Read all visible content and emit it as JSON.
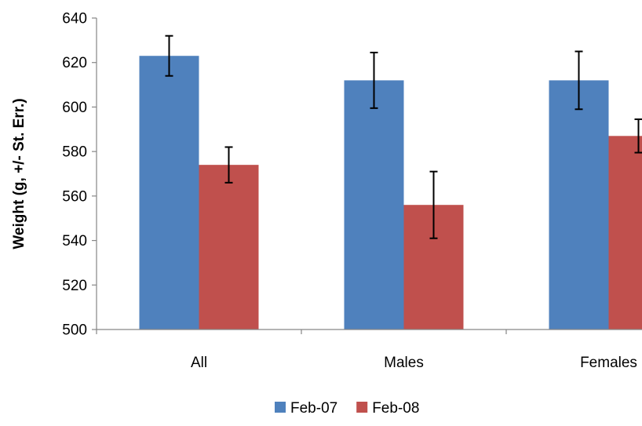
{
  "chart_data": {
    "type": "bar",
    "title": "",
    "xlabel": "",
    "ylabel": "Weight (g, +/- St. Err.)",
    "ylim": [
      500,
      640
    ],
    "yticks": [
      500,
      520,
      540,
      560,
      580,
      600,
      620,
      640
    ],
    "grid": false,
    "legend_position": "bottom",
    "categories": [
      "All",
      "Males",
      "Females"
    ],
    "series": [
      {
        "name": "Feb-07",
        "color": "#4F81BD",
        "values": [
          623,
          612,
          612
        ],
        "errors": [
          9,
          12.5,
          13
        ]
      },
      {
        "name": "Feb-08",
        "color": "#C0504D",
        "values": [
          574,
          556,
          587
        ],
        "errors": [
          8,
          15,
          7.5
        ]
      }
    ]
  }
}
